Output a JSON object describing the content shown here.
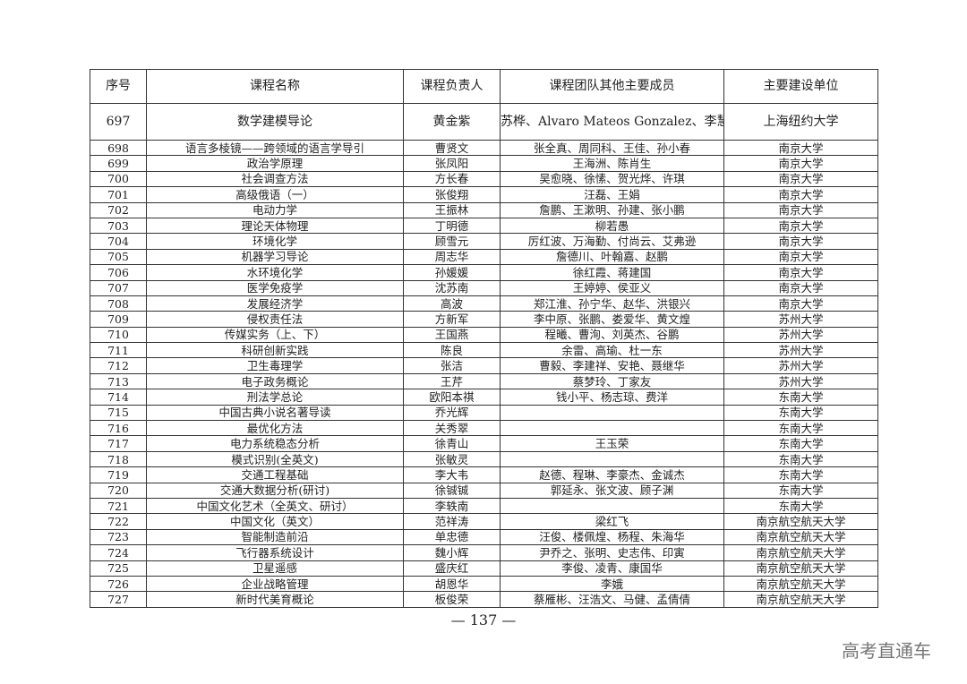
{
  "headers": [
    "序号",
    "课程名称",
    "课程负责人",
    "课程团队其他主要成员",
    "主要建设单位"
  ],
  "rows": [
    [
      "697",
      "数学建模导论",
      "黄金紫",
      "苏桦、Alvaro Mateos Gonzalez、李慧琳",
      "上海纽约大学"
    ],
    [
      "698",
      "语言多棱镜——跨领域的语言学导引",
      "曹贤文",
      "张全真、周同科、王佳、孙小春",
      "南京大学"
    ],
    [
      "699",
      "政治学原理",
      "张凤阳",
      "王海洲、陈肖生",
      "南京大学"
    ],
    [
      "700",
      "社会调查方法",
      "方长春",
      "吴愈晓、徐愫、贺光烨、许琪",
      "南京大学"
    ],
    [
      "701",
      "高级俄语（一）",
      "张俊翔",
      "汪磊、王娟",
      "南京大学"
    ],
    [
      "702",
      "电动力学",
      "王振林",
      "詹鹏、王漱明、孙建、张小鹏",
      "南京大学"
    ],
    [
      "703",
      "理论天体物理",
      "丁明德",
      "柳若愚",
      "南京大学"
    ],
    [
      "704",
      "环境化学",
      "顾雪元",
      "厉红波、万海勤、付尚云、艾弗逊",
      "南京大学"
    ],
    [
      "705",
      "机器学习导论",
      "周志华",
      "詹德川、叶翰嘉、赵鹏",
      "南京大学"
    ],
    [
      "706",
      "水环境化学",
      "孙媛媛",
      "徐红霞、蒋建国",
      "南京大学"
    ],
    [
      "707",
      "医学免疫学",
      "沈苏南",
      "王婷婷、侯亚义",
      "南京大学"
    ],
    [
      "708",
      "发展经济学",
      "高波",
      "郑江淮、孙宁华、赵华、洪银兴",
      "南京大学"
    ],
    [
      "709",
      "侵权责任法",
      "方新军",
      "李中原、张鹏、娄爱华、黄文煌",
      "苏州大学"
    ],
    [
      "710",
      "传媒实务（上、下）",
      "王国燕",
      "程曦、曹洵、刘英杰、谷鹏",
      "苏州大学"
    ],
    [
      "711",
      "科研创新实践",
      "陈良",
      "余雷、高瑜、杜一东",
      "苏州大学"
    ],
    [
      "712",
      "卫生毒理学",
      "张洁",
      "曹毅、李建祥、安艳、聂继华",
      "苏州大学"
    ],
    [
      "713",
      "电子政务概论",
      "王芹",
      "蔡梦玲、丁家友",
      "苏州大学"
    ],
    [
      "714",
      "刑法学总论",
      "欧阳本祺",
      "钱小平、杨志琼、费洋",
      "东南大学"
    ],
    [
      "715",
      "中国古典小说名著导读",
      "乔光辉",
      "",
      "东南大学"
    ],
    [
      "716",
      "最优化方法",
      "关秀翠",
      "",
      "东南大学"
    ],
    [
      "717",
      "电力系统稳态分析",
      "徐青山",
      "王玉荣",
      "东南大学"
    ],
    [
      "718",
      "模式识别(全英文)",
      "张敏灵",
      "",
      "东南大学"
    ],
    [
      "719",
      "交通工程基础",
      "李大韦",
      "赵德、程琳、李豪杰、金诚杰",
      "东南大学"
    ],
    [
      "720",
      "交通大数据分析(研讨)",
      "徐铖铖",
      "郭延永、张文波、顾子渊",
      "东南大学"
    ],
    [
      "721",
      "中国文化艺术（全英文、研讨）",
      "李轶南",
      "",
      "东南大学"
    ],
    [
      "722",
      "中国文化（英文）",
      "范祥涛",
      "梁红飞",
      "南京航空航天大学"
    ],
    [
      "723",
      "智能制造前沿",
      "单忠德",
      "汪俊、楼佩煌、杨程、朱海华",
      "南京航空航天大学"
    ],
    [
      "724",
      "飞行器系统设计",
      "魏小辉",
      "尹乔之、张明、史志伟、印寅",
      "南京航空航天大学"
    ],
    [
      "725",
      "卫星遥感",
      "盛庆红",
      "李俊、凌青、康国华",
      "南京航空航天大学"
    ],
    [
      "726",
      "企业战略管理",
      "胡恩华",
      "李娥",
      "南京航空航天大学"
    ],
    [
      "727",
      "新时代美育概论",
      "板俊荣",
      "蔡雁彬、汪浩文、马健、孟倩倩",
      "南京航空航天大学"
    ]
  ],
  "page_number": "— 137 —",
  "watermark": "高考直通车"
}
